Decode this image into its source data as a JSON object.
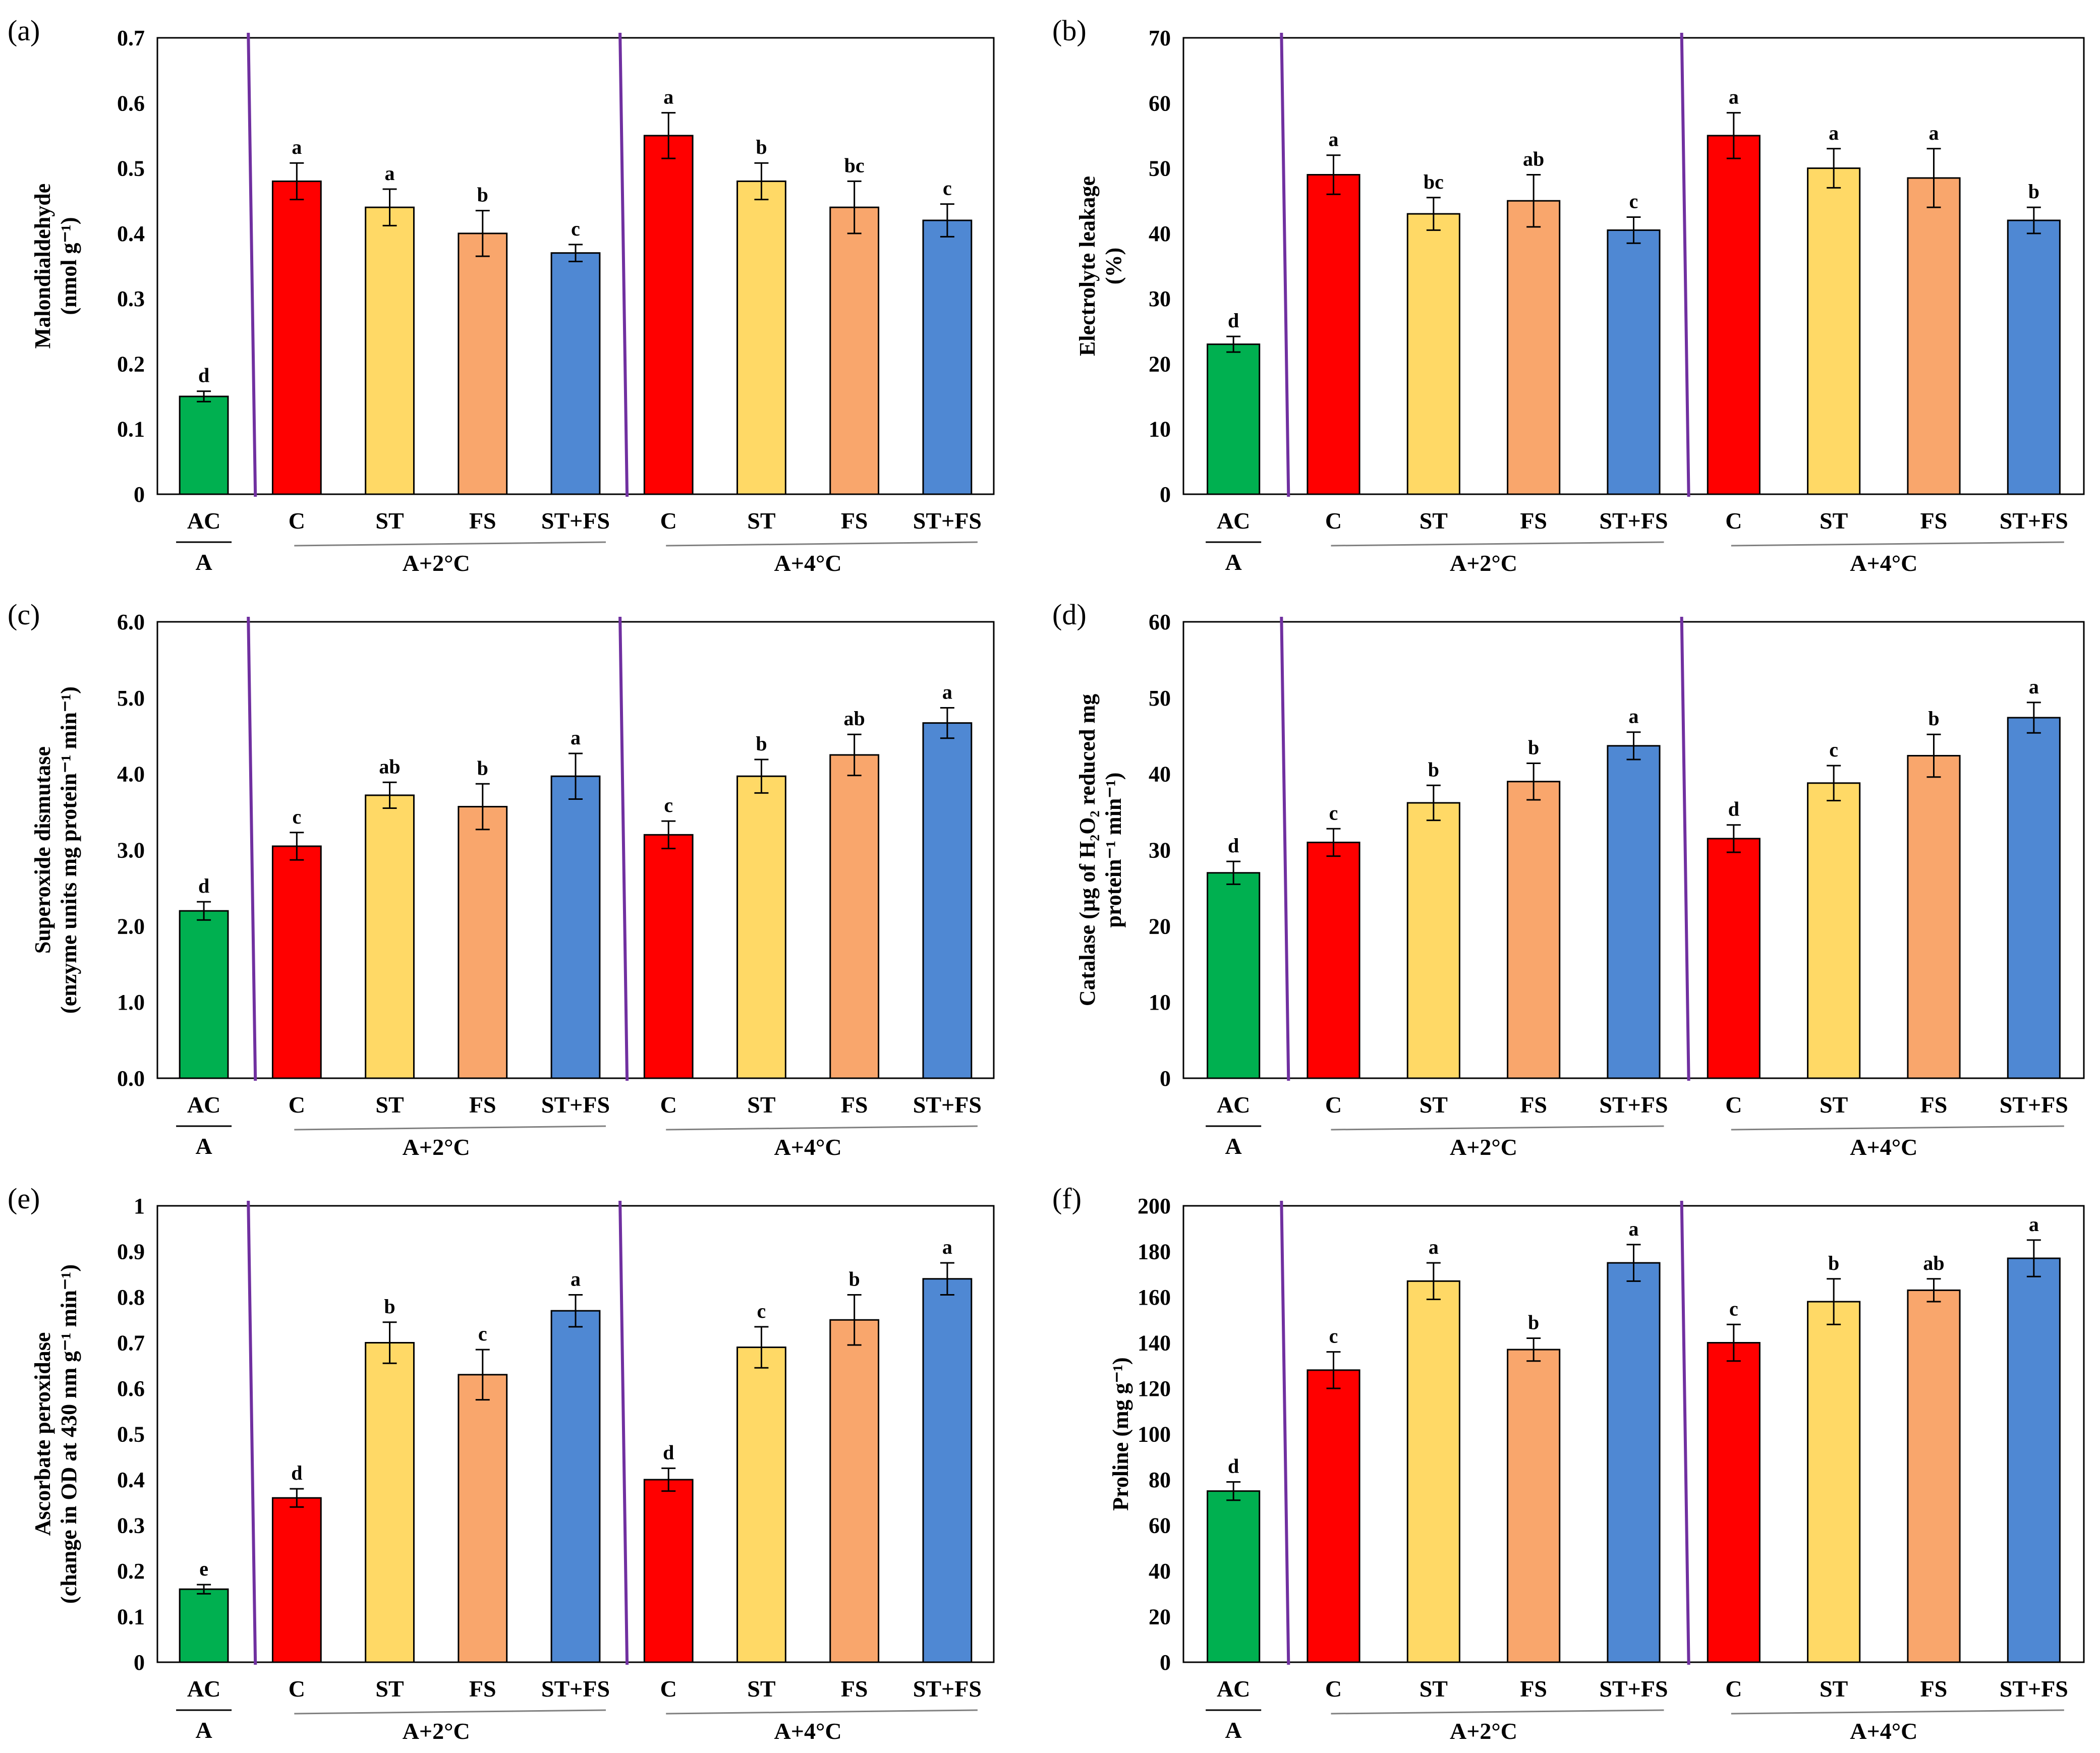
{
  "colors": {
    "green": "#00b050",
    "red": "#ff0000",
    "yellow": "#ffd966",
    "orange": "#f9a66c",
    "blue": "#4f88d3",
    "divider": "#7030a0",
    "group_line": "#808080"
  },
  "categories": [
    "AC",
    "C",
    "ST",
    "FS",
    "ST+FS",
    "C",
    "ST",
    "FS",
    "ST+FS"
  ],
  "bar_colors": [
    "green",
    "red",
    "yellow",
    "orange",
    "blue",
    "red",
    "yellow",
    "orange",
    "blue"
  ],
  "groups": [
    "A",
    "A+2°C",
    "A+4°C"
  ],
  "chart_data": [
    {
      "type": "bar",
      "panel": "(a)",
      "ylabel": [
        "Malondialdehyde",
        "(nmol g⁻¹)"
      ],
      "ylim": [
        0,
        0.7
      ],
      "ticks": [
        "0",
        "0.1",
        "0.2",
        "0.3",
        "0.4",
        "0.5",
        "0.6",
        "0.7"
      ],
      "values": [
        0.15,
        0.48,
        0.44,
        0.4,
        0.37,
        0.55,
        0.48,
        0.44,
        0.42
      ],
      "errors": [
        0.008,
        0.028,
        0.028,
        0.035,
        0.013,
        0.035,
        0.028,
        0.04,
        0.025
      ],
      "letters": [
        "d",
        "a",
        "a",
        "b",
        "c",
        "a",
        "b",
        "bc",
        "c"
      ]
    },
    {
      "type": "bar",
      "panel": "(b)",
      "ylabel": [
        "Electrolyte  leakage",
        "(%)"
      ],
      "ylim": [
        0,
        70
      ],
      "ticks": [
        "0",
        "10",
        "20",
        "30",
        "40",
        "50",
        "60",
        "70"
      ],
      "values": [
        23,
        49,
        43,
        45,
        40.5,
        55,
        50,
        48.5,
        42
      ],
      "errors": [
        1.2,
        3,
        2.5,
        4,
        2,
        3.5,
        3,
        4.5,
        2
      ],
      "letters": [
        "d",
        "a",
        "bc",
        "ab",
        "c",
        "a",
        "a",
        "a",
        "b"
      ]
    },
    {
      "type": "bar",
      "panel": "(c)",
      "ylabel": [
        "Superoxide  dismutase",
        "(enzyme  units mg protein⁻¹ min⁻¹)"
      ],
      "ylim": [
        0,
        6
      ],
      "ticks": [
        "0.0",
        "1.0",
        "2.0",
        "3.0",
        "4.0",
        "5.0",
        "6.0"
      ],
      "values": [
        2.2,
        3.05,
        3.72,
        3.57,
        3.97,
        3.2,
        3.97,
        4.25,
        4.67
      ],
      "errors": [
        0.12,
        0.18,
        0.17,
        0.3,
        0.3,
        0.18,
        0.22,
        0.27,
        0.2
      ],
      "letters": [
        "d",
        "c",
        "ab",
        "b",
        "a",
        "c",
        "b",
        "ab",
        "a"
      ]
    },
    {
      "type": "bar",
      "panel": "(d)",
      "ylabel": [
        "Catalase (µg of H₂O₂ reduced mg",
        "protein⁻¹ min⁻¹)"
      ],
      "ylim": [
        0,
        60
      ],
      "ticks": [
        "0",
        "10",
        "20",
        "30",
        "40",
        "50",
        "60"
      ],
      "values": [
        27,
        31,
        36.2,
        39,
        43.7,
        31.5,
        38.8,
        42.4,
        47.4
      ],
      "errors": [
        1.5,
        1.8,
        2.3,
        2.4,
        1.8,
        1.8,
        2.3,
        2.8,
        2
      ],
      "letters": [
        "d",
        "c",
        "b",
        "b",
        "a",
        "d",
        "c",
        "b",
        "a"
      ]
    },
    {
      "type": "bar",
      "panel": "(e)",
      "ylabel": [
        "Ascorbate  peroxidase",
        "(change in OD at 430 nm g⁻¹ min⁻¹)"
      ],
      "ylim": [
        0,
        1
      ],
      "ticks": [
        "0",
        "0.1",
        "0.2",
        "0.3",
        "0.4",
        "0.5",
        "0.6",
        "0.7",
        "0.8",
        "0.9",
        "1"
      ],
      "values": [
        0.16,
        0.36,
        0.7,
        0.63,
        0.77,
        0.4,
        0.69,
        0.75,
        0.84
      ],
      "errors": [
        0.01,
        0.02,
        0.045,
        0.055,
        0.035,
        0.025,
        0.045,
        0.055,
        0.035
      ],
      "letters": [
        "e",
        "d",
        "b",
        "c",
        "a",
        "d",
        "c",
        "b",
        "a"
      ]
    },
    {
      "type": "bar",
      "panel": "(f)",
      "ylabel": [
        "Proline (mg g⁻¹)"
      ],
      "ylim": [
        0,
        200
      ],
      "ticks": [
        "0",
        "20",
        "40",
        "60",
        "80",
        "100",
        "120",
        "140",
        "160",
        "180",
        "200"
      ],
      "values": [
        75,
        128,
        167,
        137,
        175,
        140,
        158,
        163,
        177
      ],
      "errors": [
        4,
        8,
        8,
        5,
        8,
        8,
        10,
        5,
        8
      ],
      "letters": [
        "d",
        "c",
        "a",
        "b",
        "a",
        "c",
        "b",
        "ab",
        "a"
      ]
    }
  ]
}
